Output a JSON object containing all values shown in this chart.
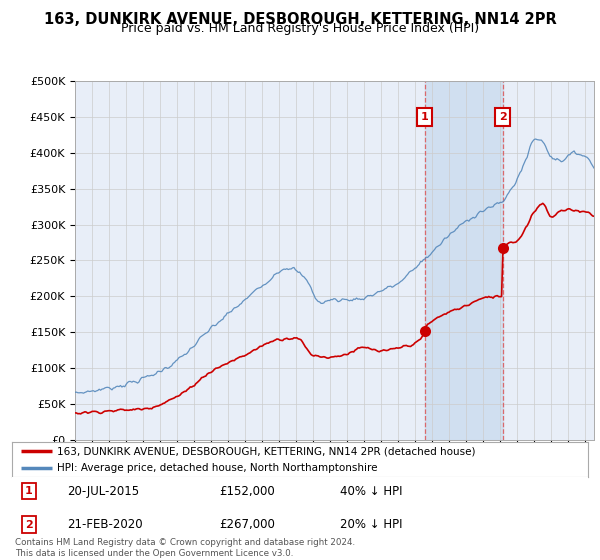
{
  "title": "163, DUNKIRK AVENUE, DESBOROUGH, KETTERING, NN14 2PR",
  "subtitle": "Price paid vs. HM Land Registry's House Price Index (HPI)",
  "ylabel_ticks": [
    "£0",
    "£50K",
    "£100K",
    "£150K",
    "£200K",
    "£250K",
    "£300K",
    "£350K",
    "£400K",
    "£450K",
    "£500K"
  ],
  "ytick_values": [
    0,
    50000,
    100000,
    150000,
    200000,
    250000,
    300000,
    350000,
    400000,
    450000,
    500000
  ],
  "hpi_color": "#5588bb",
  "house_color": "#cc0000",
  "background_color": "#ffffff",
  "plot_bg_color": "#e8eef8",
  "grid_color": "#cccccc",
  "sale1_x": 2015.55,
  "sale1_price": 152000,
  "sale2_x": 2020.13,
  "sale2_price": 267000,
  "legend_house": "163, DUNKIRK AVENUE, DESBOROUGH, KETTERING, NN14 2PR (detached house)",
  "legend_hpi": "HPI: Average price, detached house, North Northamptonshire",
  "footer": "Contains HM Land Registry data © Crown copyright and database right 2024.\nThis data is licensed under the Open Government Licence v3.0.",
  "xmin": 1995,
  "xmax": 2025.5,
  "ymin": 0,
  "ymax": 500000
}
